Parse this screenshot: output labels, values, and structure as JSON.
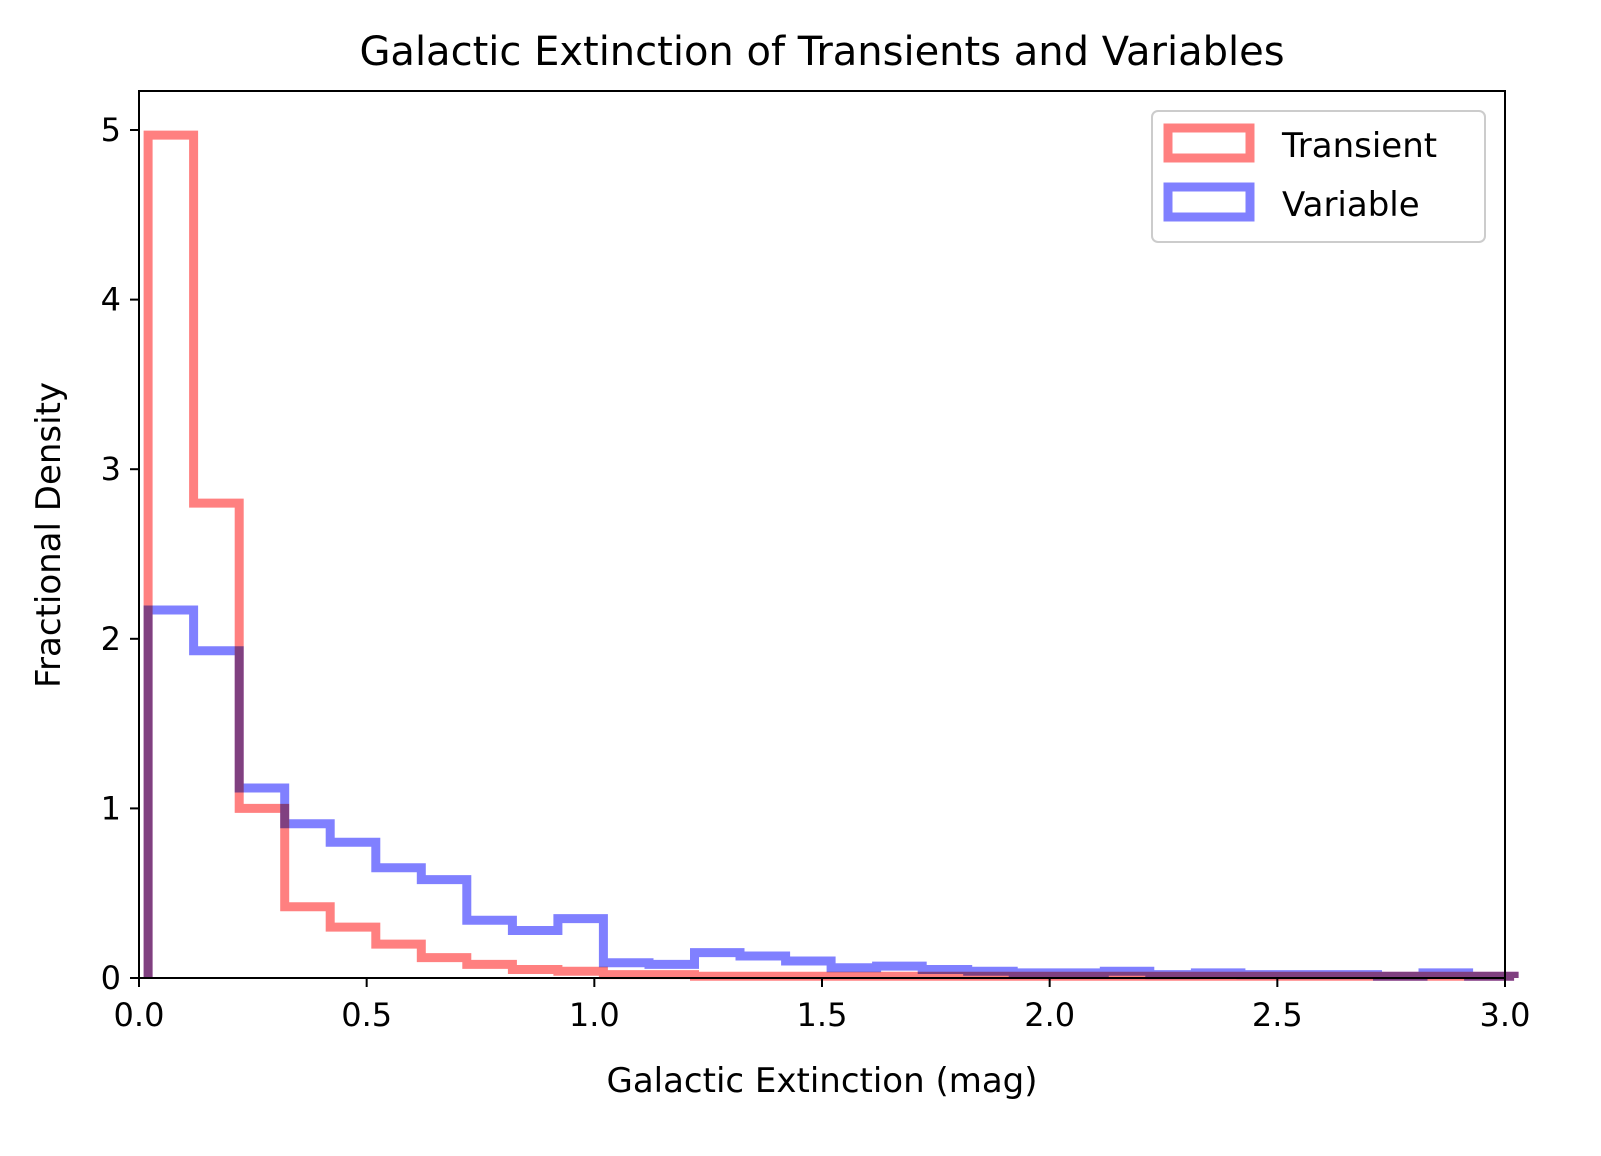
{
  "chart_data": {
    "type": "histogram",
    "title": "Galactic Extinction of Transients and Variables",
    "xlabel": "Galactic Extinction (mag)",
    "ylabel": "Fractional Density",
    "xlim": [
      0.0,
      3.0
    ],
    "ylim": [
      0,
      5.23
    ],
    "grid": false,
    "legend_position": "top-right",
    "xticks": [
      "0.0",
      "0.5",
      "1.0",
      "1.5",
      "2.0",
      "2.5",
      "3.0"
    ],
    "xtick_values": [
      0.0,
      0.5,
      1.0,
      1.5,
      2.0,
      2.5,
      3.0
    ],
    "yticks": [
      "0",
      "1",
      "2",
      "3",
      "4",
      "5"
    ],
    "ytick_values": [
      0,
      1,
      2,
      3,
      4,
      5
    ],
    "bin_edges": [
      0.02,
      0.12,
      0.22,
      0.32,
      0.42,
      0.52,
      0.62,
      0.72,
      0.82,
      0.92,
      1.02,
      1.12,
      1.22,
      1.32,
      1.42,
      1.52,
      1.62,
      1.72,
      1.82,
      1.92,
      2.02,
      2.12,
      2.22,
      2.32,
      2.42,
      2.52,
      2.62,
      2.72,
      2.82,
      2.92,
      3.02
    ],
    "series": [
      {
        "name": "Transient",
        "color": "#ff8080",
        "values": [
          4.97,
          2.8,
          1.0,
          0.42,
          0.3,
          0.2,
          0.12,
          0.08,
          0.05,
          0.04,
          0.02,
          0.02,
          0.01,
          0.01,
          0.01,
          0.01,
          0.01,
          0.01,
          0.01,
          0.01,
          0.01,
          0.01,
          0.01,
          0.01,
          0.01,
          0.01,
          0.01,
          0.01,
          0.01,
          0.01
        ]
      },
      {
        "name": "Variable",
        "color": "#8080ff",
        "values": [
          2.17,
          1.93,
          1.12,
          0.91,
          0.8,
          0.65,
          0.58,
          0.34,
          0.28,
          0.35,
          0.09,
          0.08,
          0.15,
          0.13,
          0.1,
          0.06,
          0.07,
          0.05,
          0.04,
          0.03,
          0.03,
          0.04,
          0.02,
          0.03,
          0.02,
          0.02,
          0.02,
          0.01,
          0.03,
          0.01
        ]
      }
    ]
  }
}
